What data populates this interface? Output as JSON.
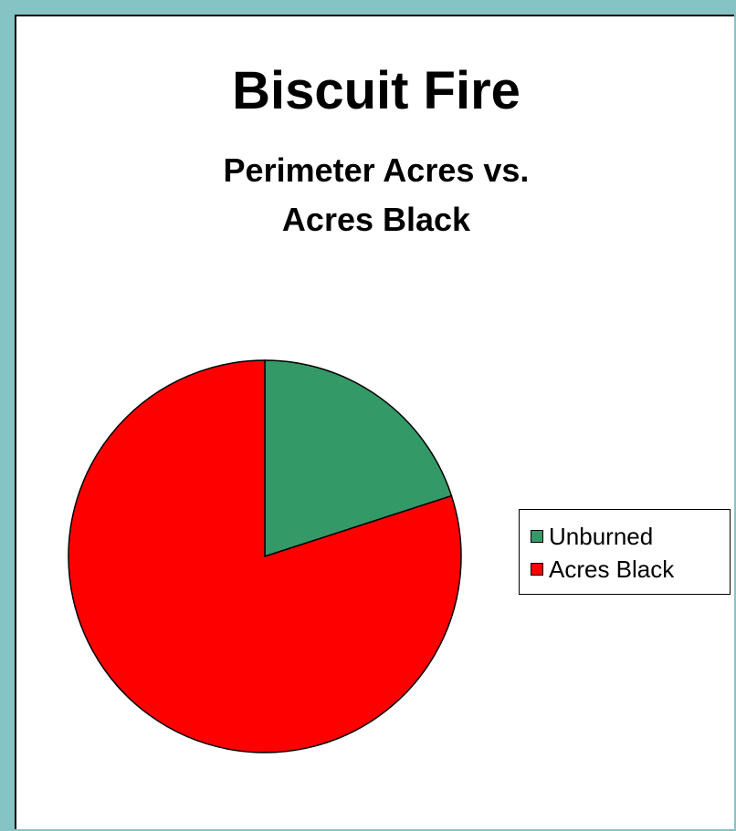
{
  "chart_data": {
    "type": "pie",
    "title": "Biscuit Fire",
    "subtitle": [
      "Perimeter Acres vs.",
      "Acres Black"
    ],
    "categories": [
      "Unburned",
      "Acres Black"
    ],
    "values": [
      20,
      80
    ],
    "colors": [
      "#339966",
      "#ff0000"
    ],
    "legend_position": "right"
  }
}
